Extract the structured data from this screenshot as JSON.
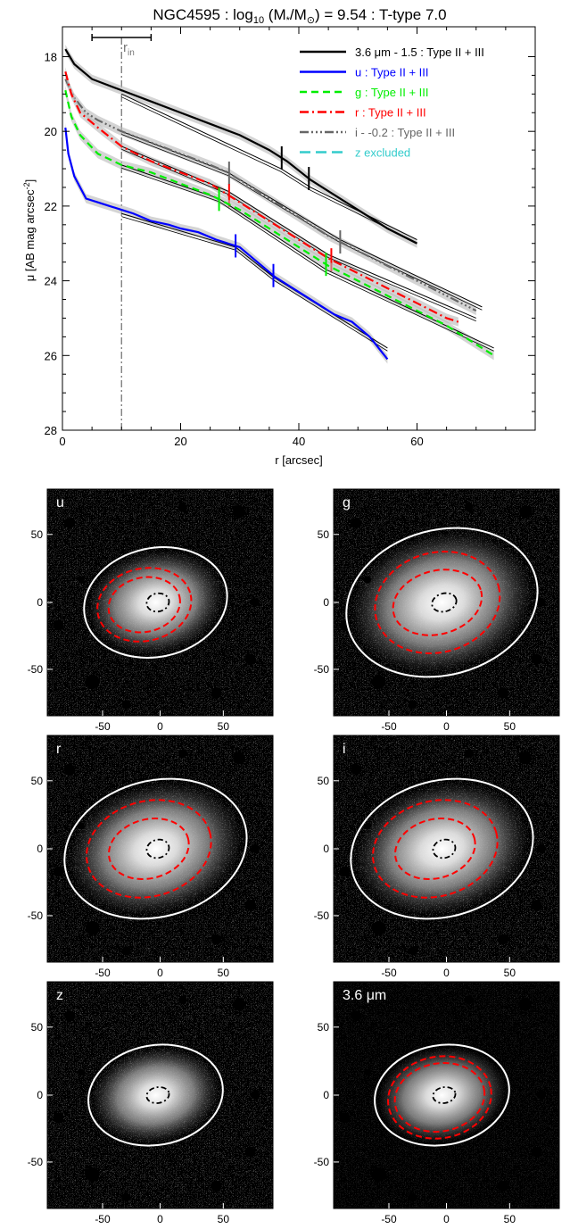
{
  "colors": {
    "black": "#000000",
    "blue": "#0000ff",
    "green": "#00ee00",
    "red": "#ff0000",
    "gray": "#666666",
    "cyan": "#33cccc",
    "shade": "#b8b8b8"
  },
  "chart_data": [
    {
      "type": "line",
      "title_prefix": "NGC4595 : log",
      "title_sub": "10",
      "title_mid": " (M",
      "title_sub2": "*",
      "title_mid2": "/M",
      "title_sub3": "⊙",
      "title_suffix": ") = 9.54 : T-type 7.0",
      "xlabel": "r [arcsec]",
      "ylabel": "μ [AB mag arcsec",
      "ylabel_sup": "-2",
      "ylabel_end": "]",
      "xlim": [
        0,
        80
      ],
      "ylim": [
        28,
        17.2
      ],
      "x_ticks": [
        "0",
        "20",
        "40",
        "60"
      ],
      "x_tick_values": [
        0,
        20,
        40,
        60
      ],
      "y_ticks": [
        "18",
        "20",
        "22",
        "24",
        "26",
        "28"
      ],
      "y_tick_values": [
        18,
        20,
        22,
        24,
        26,
        28
      ],
      "r_in": 10,
      "r_in_label": "r",
      "r_in_sub": "in",
      "r_in_bar": [
        5,
        15
      ],
      "legend": [
        {
          "text": "3.6 μm - 1.5 : Type II + III",
          "color": "black",
          "dash": "",
          "width": 2.5
        },
        {
          "text": "u : Type II + III",
          "color": "blue",
          "dash": "",
          "width": 2.5
        },
        {
          "text": "g : Type II + III",
          "color": "green",
          "dash": "8,5",
          "width": 2.5
        },
        {
          "text": "r : Type II + III",
          "color": "red",
          "dash": "10,4,2,4",
          "width": 2.5
        },
        {
          "text": "i - -0.2 : Type II + III",
          "color": "gray",
          "dash": "10,3,2,3,2,3,2,3",
          "width": 2.5
        },
        {
          "text": "z excluded",
          "color": "cyan",
          "dash": "12,6",
          "width": 2.5
        }
      ],
      "series": [
        {
          "name": "3.6 μm - 1.5",
          "color": "black",
          "dash": "",
          "x": [
            0.5,
            2,
            5,
            10,
            15,
            20,
            25,
            30,
            35,
            38,
            42,
            45,
            50,
            55,
            60
          ],
          "y": [
            17.8,
            18.2,
            18.6,
            18.9,
            19.2,
            19.5,
            19.8,
            20.1,
            20.5,
            20.8,
            21.3,
            21.6,
            22.1,
            22.6,
            23.0
          ],
          "fit": [
            [
              10,
              19.0
            ],
            [
              37,
              21.0
            ],
            [
              42,
              21.5
            ],
            [
              60,
              22.9
            ]
          ],
          "breaks": [
            37.1,
            41.7
          ]
        },
        {
          "name": "i - -0.2",
          "color": "gray",
          "dash": "10,3,2,3,2,3,2,3",
          "x": [
            0.5,
            2,
            4,
            6,
            10,
            15,
            20,
            25,
            28,
            32,
            36,
            40,
            45,
            50,
            55,
            60,
            65,
            70
          ],
          "y": [
            18.6,
            19.1,
            19.5,
            19.7,
            20.0,
            20.3,
            20.6,
            20.9,
            21.1,
            21.5,
            21.9,
            22.3,
            22.8,
            23.2,
            23.6,
            24.0,
            24.4,
            24.8
          ],
          "fit": [
            [
              10,
              20.0
            ],
            [
              28,
              21.1
            ],
            [
              47,
              22.9
            ],
            [
              71,
              24.7
            ]
          ],
          "breaks": [
            28.2,
            47.0
          ]
        },
        {
          "name": "r",
          "color": "red",
          "dash": "10,4,2,4",
          "x": [
            0.5,
            1.5,
            3,
            6,
            10,
            15,
            20,
            25,
            28,
            32,
            36,
            40,
            45,
            50,
            55,
            60,
            65,
            67
          ],
          "y": [
            18.4,
            19.0,
            19.5,
            19.9,
            20.4,
            20.8,
            21.1,
            21.4,
            21.7,
            22.1,
            22.5,
            22.9,
            23.4,
            23.8,
            24.2,
            24.6,
            25.0,
            25.1
          ],
          "fit": [
            [
              10,
              20.4
            ],
            [
              28,
              21.6
            ],
            [
              45,
              23.3
            ],
            [
              70,
              25.0
            ]
          ],
          "breaks": [
            28.2,
            45.5
          ]
        },
        {
          "name": "g",
          "color": "green",
          "dash": "8,5",
          "x": [
            0.5,
            1.5,
            3,
            6,
            10,
            15,
            20,
            25,
            30,
            35,
            40,
            45,
            50,
            55,
            60,
            65,
            70,
            73
          ],
          "y": [
            18.9,
            19.6,
            20.1,
            20.6,
            20.9,
            21.1,
            21.4,
            21.7,
            22.1,
            22.6,
            23.1,
            23.6,
            24.0,
            24.4,
            24.8,
            25.2,
            25.7,
            26.0
          ],
          "fit": [
            [
              10,
              20.9
            ],
            [
              26.5,
              21.8
            ],
            [
              44.6,
              23.7
            ],
            [
              73,
              25.8
            ]
          ],
          "breaks": [
            26.5,
            44.6
          ]
        },
        {
          "name": "u",
          "color": "blue",
          "dash": "",
          "x": [
            0.5,
            1,
            2,
            3,
            4,
            6,
            8,
            10,
            12,
            15,
            18,
            20,
            23,
            26,
            28,
            30,
            33,
            36,
            40,
            43,
            46,
            49,
            52,
            55
          ],
          "y": [
            19.9,
            20.6,
            21.2,
            21.5,
            21.8,
            21.9,
            22.0,
            22.1,
            22.2,
            22.4,
            22.5,
            22.6,
            22.7,
            22.9,
            23.0,
            23.1,
            23.5,
            23.9,
            24.3,
            24.6,
            24.9,
            25.1,
            25.5,
            26.1
          ],
          "fit": [
            [
              10,
              22.2
            ],
            [
              29.3,
              23.1
            ],
            [
              35.7,
              23.9
            ],
            [
              55,
              25.8
            ]
          ],
          "breaks": [
            29.3,
            35.7
          ]
        }
      ]
    },
    {
      "type": "image-panels",
      "panels": [
        {
          "label": "u",
          "x_ticks": [
            "-50",
            "0",
            "50"
          ],
          "y_ticks": [
            "50",
            "0",
            "-50"
          ]
        },
        {
          "label": "g",
          "x_ticks": [
            "-50",
            "0",
            "50"
          ],
          "y_ticks": [
            "50",
            "0",
            "-50"
          ]
        },
        {
          "label": "r",
          "x_ticks": [
            "-50",
            "0",
            "50"
          ],
          "y_ticks": [
            "50",
            "0",
            "-50"
          ]
        },
        {
          "label": "i",
          "x_ticks": [
            "-50",
            "0",
            "50"
          ],
          "y_ticks": [
            "50",
            "0",
            "-50"
          ]
        },
        {
          "label": "z",
          "x_ticks": [
            "-50",
            "0",
            "50"
          ],
          "y_ticks": [
            "50",
            "0",
            "-50"
          ]
        },
        {
          "label": "3.6 μm",
          "x_ticks": [
            "-50",
            "0",
            "50"
          ],
          "y_ticks": [
            "50",
            "0",
            "-50"
          ]
        }
      ]
    }
  ]
}
